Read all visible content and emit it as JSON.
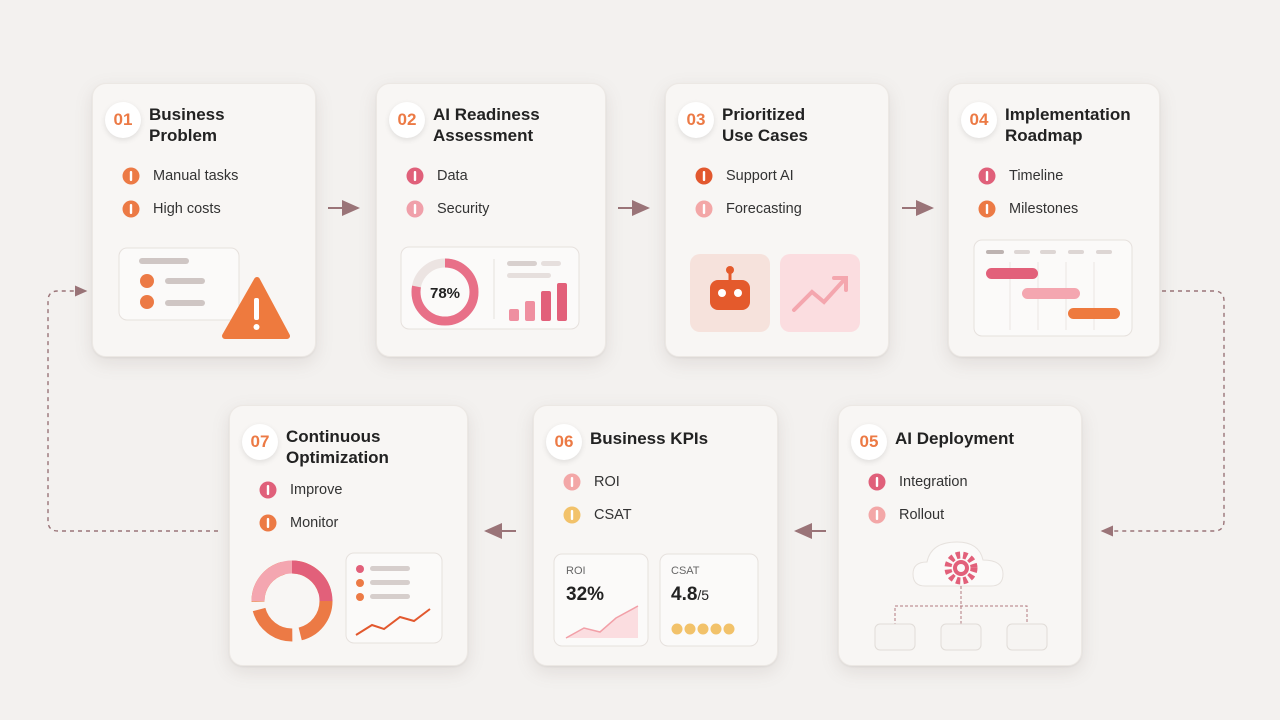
{
  "nodes": [
    {
      "number": "01",
      "title_lines": [
        "Business",
        "Problem"
      ],
      "items": [
        "Manual tasks",
        "High costs"
      ]
    },
    {
      "number": "02",
      "title_lines": [
        "AI Readiness",
        "Assessment"
      ],
      "items": [
        "Data",
        "Security"
      ],
      "gauge": "78%"
    },
    {
      "number": "03",
      "title_lines": [
        "Prioritized",
        "Use Cases"
      ],
      "items": [
        "Support AI",
        "Forecasting"
      ]
    },
    {
      "number": "04",
      "title_lines": [
        "Implementation",
        "Roadmap"
      ],
      "items": [
        "Timeline",
        "Milestones"
      ]
    },
    {
      "number": "05",
      "title_lines": [
        "AI Deployment"
      ],
      "items": [
        "Integration",
        "Rollout"
      ]
    },
    {
      "number": "06",
      "title_lines": [
        "Business KPIs"
      ],
      "items": [
        "ROI",
        "CSAT"
      ],
      "cards": [
        {
          "label": "ROI",
          "value": "32%"
        },
        {
          "label": "CSAT",
          "value": "4.8",
          "suffix": "/5"
        }
      ]
    },
    {
      "number": "07",
      "title_lines": [
        "Continuous",
        "Optimization"
      ],
      "items": [
        "Improve",
        "Monitor"
      ]
    }
  ]
}
